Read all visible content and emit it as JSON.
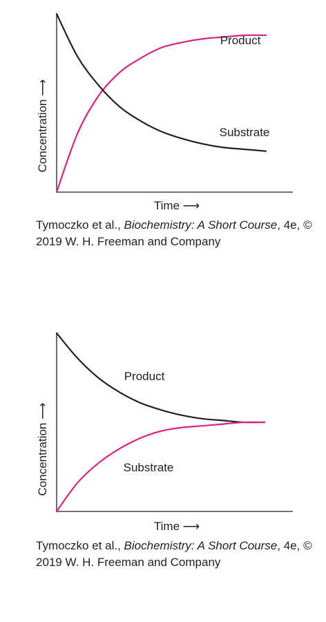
{
  "chart_data": [
    {
      "type": "line",
      "xlabel": "Time ⟶",
      "ylabel": "Concentration ⟶",
      "grid": false,
      "x": [
        0,
        0.1,
        0.2,
        0.3,
        0.4,
        0.5,
        0.6,
        0.7,
        0.8,
        0.9,
        1.0
      ],
      "series": [
        {
          "name": "Product",
          "color": "#d6257a",
          "values": [
            0.0,
            0.33,
            0.54,
            0.67,
            0.75,
            0.81,
            0.84,
            0.86,
            0.87,
            0.88,
            0.88
          ]
        },
        {
          "name": "Substrate",
          "color": "#231f20",
          "values": [
            1.0,
            0.76,
            0.6,
            0.48,
            0.4,
            0.34,
            0.3,
            0.27,
            0.25,
            0.24,
            0.23
          ]
        }
      ],
      "label_positions_note": "",
      "caption": {
        "authors": "Tymoczko et al., ",
        "book": "Biochemistry: A Short Course",
        "rest": ", 4e, © 2019 W. H. Freeman and Company"
      }
    },
    {
      "type": "line",
      "xlabel": "Time ⟶",
      "ylabel": "Concentration ⟶",
      "grid": false,
      "x": [
        0,
        0.1,
        0.2,
        0.3,
        0.4,
        0.5,
        0.6,
        0.7,
        0.8,
        0.9,
        1.0
      ],
      "series": [
        {
          "name": "Product",
          "color": "#231f20",
          "values": [
            1.0,
            0.86,
            0.75,
            0.67,
            0.61,
            0.57,
            0.54,
            0.52,
            0.51,
            0.5,
            0.5
          ]
        },
        {
          "name": "Substrate",
          "color": "#d6257a",
          "values": [
            0.0,
            0.16,
            0.27,
            0.35,
            0.41,
            0.45,
            0.47,
            0.48,
            0.49,
            0.5,
            0.5
          ]
        }
      ],
      "caption": {
        "authors": "Tymoczko et al., ",
        "book": "Biochemistry: A Short Course",
        "rest": ", 4e, © 2019 W. H. Freeman and Company"
      }
    }
  ]
}
